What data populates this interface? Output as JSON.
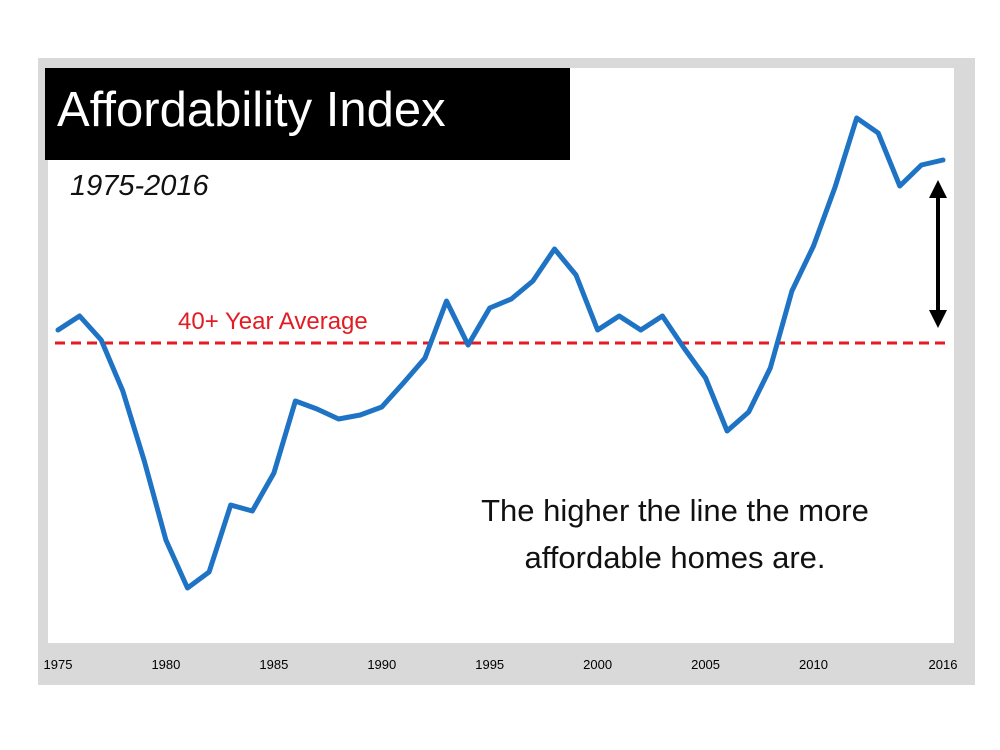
{
  "title": "Affordability Index",
  "subtitle": "1975-2016",
  "annotation": {
    "line1": "The higher the line the more",
    "line2": "affordable homes are."
  },
  "colors": {
    "line": "#1f73c4",
    "average": "#e31b23",
    "title_bg": "#000000",
    "frame": "#d9d9d9"
  },
  "chart_data": {
    "type": "line",
    "title": "Affordability Index",
    "subtitle": "1975-2016",
    "x_tick_labels": [
      "1975",
      "1980",
      "1985",
      "1990",
      "1995",
      "2000",
      "2005",
      "2010",
      "2016"
    ],
    "x_ticks": [
      1975,
      1980,
      1985,
      1990,
      1995,
      2000,
      2005,
      2010,
      2016
    ],
    "xlim": [
      1975,
      2016
    ],
    "x": [
      1975,
      1976,
      1977,
      1978,
      1979,
      1980,
      1981,
      1982,
      1983,
      1984,
      1985,
      1986,
      1987,
      1988,
      1989,
      1990,
      1991,
      1992,
      1993,
      1994,
      1995,
      1996,
      1997,
      1998,
      1999,
      2000,
      2001,
      2002,
      2003,
      2004,
      2005,
      2006,
      2007,
      2008,
      2009,
      2010,
      2011,
      2012,
      2013,
      2014,
      2015,
      2016
    ],
    "series": [
      {
        "values": [
          -13,
          -27,
          -3,
          48,
          118,
          197,
          245,
          229,
          162,
          168,
          130,
          58,
          66,
          76,
          72,
          64,
          40,
          15,
          -42,
          2,
          -35,
          -44,
          -62,
          -94,
          -68,
          -13,
          -27,
          -13,
          -27,
          5,
          35,
          88,
          69,
          25,
          -52,
          -97,
          -156,
          -225,
          -210,
          -157,
          -178,
          -183
        ]
      }
    ],
    "reference_lines": [
      {
        "label": "40+ Year Average",
        "value": 0,
        "style": "dashed"
      }
    ],
    "annotations": [
      "The higher the line the more affordable homes are.",
      "double-headed arrow at 2016 spanning from the average line up to the 2016 value"
    ],
    "grid": false,
    "y_axis_labels": false
  }
}
